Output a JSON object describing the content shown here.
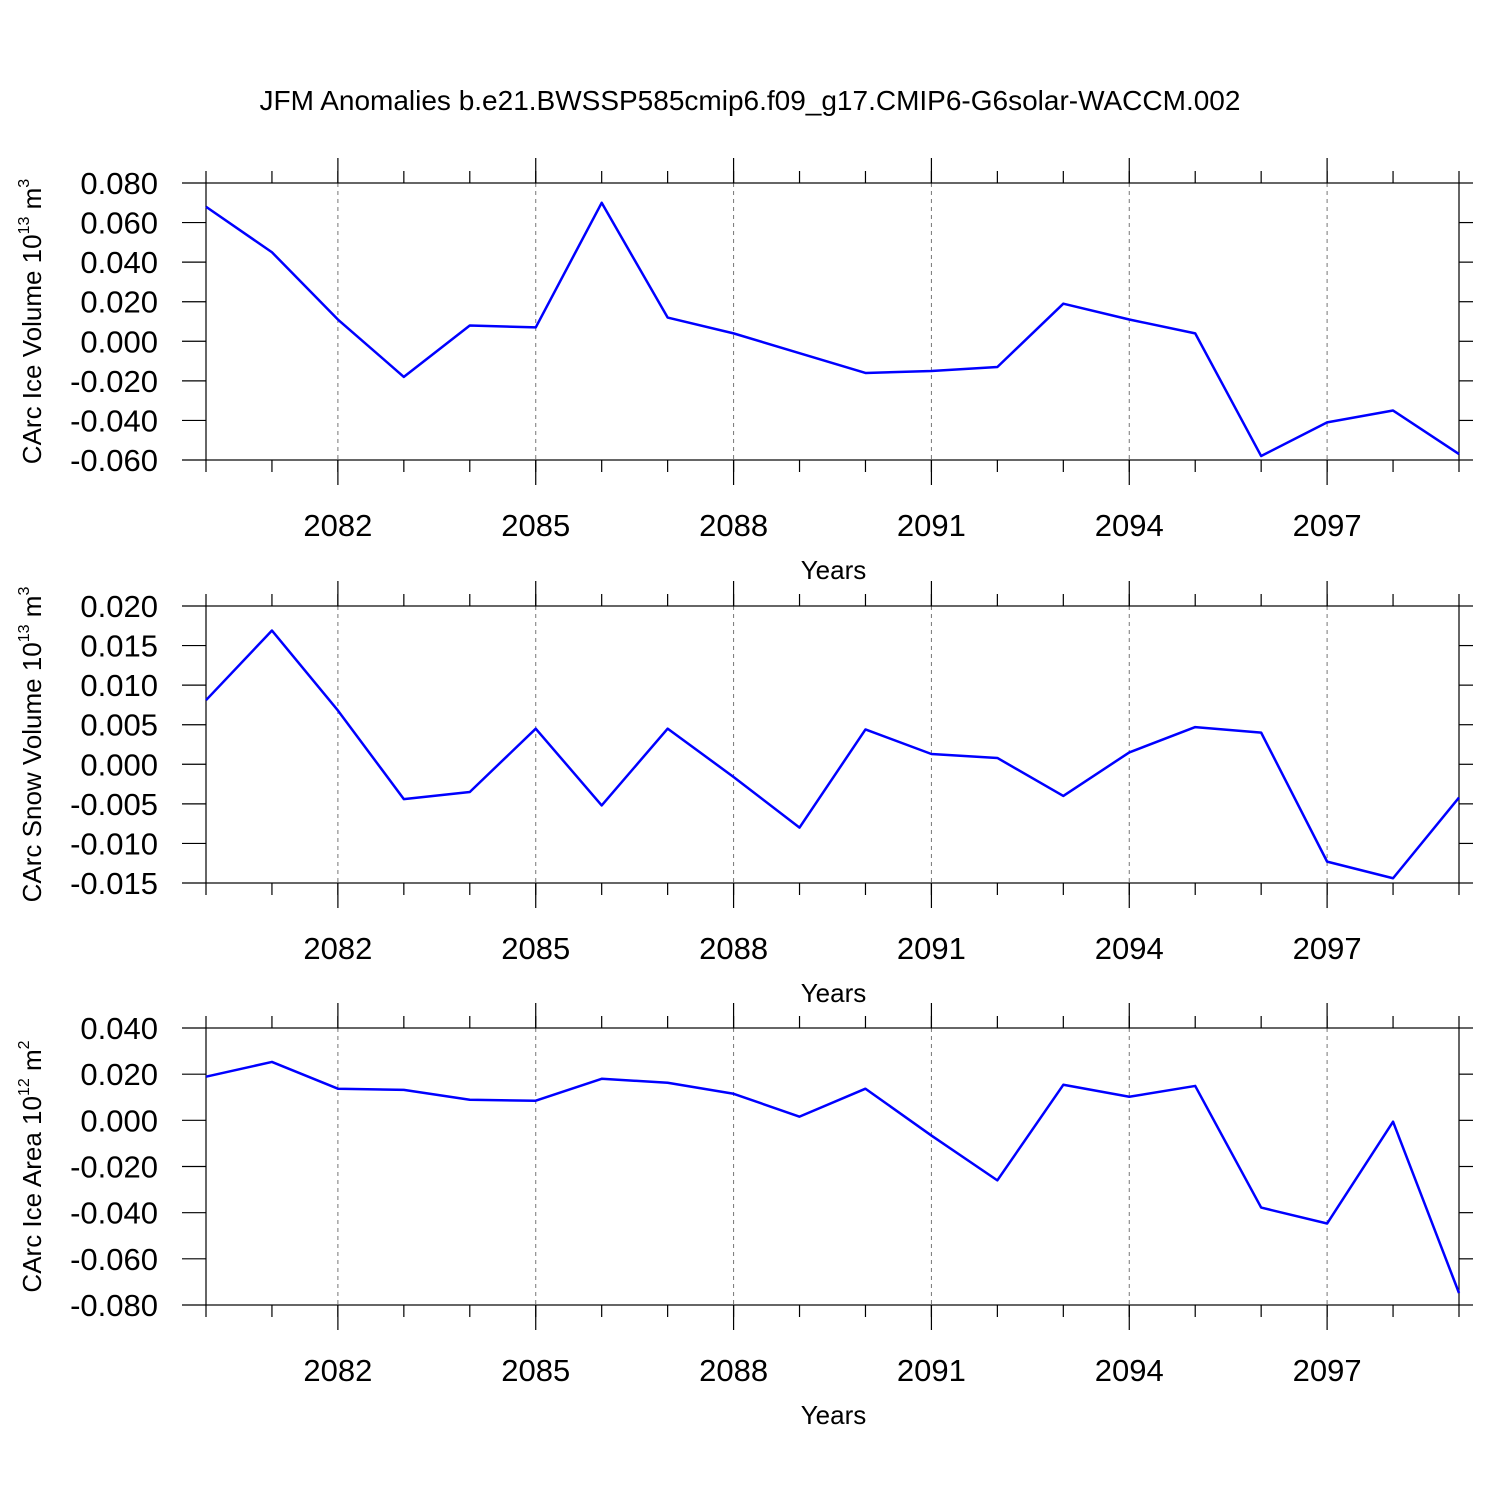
{
  "title": "JFM Anomalies b.e21.BWSSP585cmip6.f09_g17.CMIP6-G6solar-WACCM.002",
  "chart_data": [
    {
      "type": "line",
      "xlabel": "Years",
      "ylabel": [
        "CArc Ice Volume 10",
        "13",
        " m",
        "3"
      ],
      "x": [
        2080,
        2081,
        2082,
        2083,
        2084,
        2085,
        2086,
        2087,
        2088,
        2089,
        2090,
        2091,
        2092,
        2093,
        2094,
        2095,
        2096,
        2097,
        2098,
        2099
      ],
      "series": [
        {
          "color": "#0000ff",
          "values": [
            0.068,
            0.045,
            0.011,
            -0.018,
            0.008,
            0.007,
            0.07,
            0.012,
            0.004,
            -0.006,
            -0.016,
            -0.015,
            -0.013,
            0.019,
            0.011,
            0.004,
            -0.058,
            -0.041,
            -0.035,
            -0.057
          ]
        }
      ],
      "xlim": [
        2080,
        2099
      ],
      "xticks": [
        2082,
        2085,
        2088,
        2091,
        2094,
        2097
      ],
      "ylim": [
        -0.06,
        0.08
      ],
      "yticks": [
        {
          "value": -0.06,
          "label": "-0.060"
        },
        {
          "value": -0.04,
          "label": "-0.040"
        },
        {
          "value": -0.02,
          "label": "-0.020"
        },
        {
          "value": 0,
          "label": "0.000"
        },
        {
          "value": 0.02,
          "label": "0.020"
        },
        {
          "value": 0.04,
          "label": "0.040"
        },
        {
          "value": 0.06,
          "label": "0.060"
        },
        {
          "value": 0.08,
          "label": "0.080"
        }
      ],
      "grid": "x"
    },
    {
      "type": "line",
      "xlabel": "Years",
      "ylabel": [
        "CArc Snow Volume 10",
        "13",
        " m",
        "3"
      ],
      "x": [
        2080,
        2081,
        2082,
        2083,
        2084,
        2085,
        2086,
        2087,
        2088,
        2089,
        2090,
        2091,
        2092,
        2093,
        2094,
        2095,
        2096,
        2097,
        2098,
        2099
      ],
      "series": [
        {
          "color": "#0000ff",
          "values": [
            0.0081,
            0.0169,
            0.0068,
            -0.0044,
            -0.0035,
            0.0045,
            -0.0052,
            0.0045,
            -0.0016,
            -0.008,
            0.0044,
            0.0013,
            0.0008,
            -0.004,
            0.0015,
            0.0047,
            0.004,
            -0.0123,
            -0.0144,
            -0.0042
          ]
        }
      ],
      "xlim": [
        2080,
        2099
      ],
      "xticks": [
        2082,
        2085,
        2088,
        2091,
        2094,
        2097
      ],
      "ylim": [
        -0.015,
        0.02
      ],
      "yticks": [
        {
          "value": -0.015,
          "label": "-0.015"
        },
        {
          "value": -0.01,
          "label": "-0.010"
        },
        {
          "value": -0.005,
          "label": "-0.005"
        },
        {
          "value": 0,
          "label": "0.000"
        },
        {
          "value": 0.005,
          "label": "0.005"
        },
        {
          "value": 0.01,
          "label": "0.010"
        },
        {
          "value": 0.015,
          "label": "0.015"
        },
        {
          "value": 0.02,
          "label": "0.020"
        }
      ],
      "grid": "x"
    },
    {
      "type": "line",
      "xlabel": "Years",
      "ylabel": [
        "CArc Ice Area 10",
        "12",
        " m",
        "2"
      ],
      "x": [
        2080,
        2081,
        2082,
        2083,
        2084,
        2085,
        2086,
        2087,
        2088,
        2089,
        2090,
        2091,
        2092,
        2093,
        2094,
        2095,
        2096,
        2097,
        2098,
        2099
      ],
      "series": [
        {
          "color": "#0000ff",
          "values": [
            0.0189,
            0.0253,
            0.0137,
            0.0132,
            0.0089,
            0.0085,
            0.018,
            0.0163,
            0.0115,
            0.0016,
            0.0137,
            -0.0066,
            -0.026,
            0.0154,
            0.0102,
            0.0149,
            -0.0378,
            -0.0447,
            -0.0006,
            -0.0748
          ]
        }
      ],
      "xlim": [
        2080,
        2099
      ],
      "xticks": [
        2082,
        2085,
        2088,
        2091,
        2094,
        2097
      ],
      "ylim": [
        -0.08,
        0.04
      ],
      "yticks": [
        {
          "value": -0.08,
          "label": "-0.080"
        },
        {
          "value": -0.06,
          "label": "-0.060"
        },
        {
          "value": -0.04,
          "label": "-0.040"
        },
        {
          "value": -0.02,
          "label": "-0.020"
        },
        {
          "value": 0,
          "label": "0.000"
        },
        {
          "value": 0.02,
          "label": "0.020"
        },
        {
          "value": 0.04,
          "label": "0.040"
        }
      ],
      "grid": "x"
    }
  ]
}
